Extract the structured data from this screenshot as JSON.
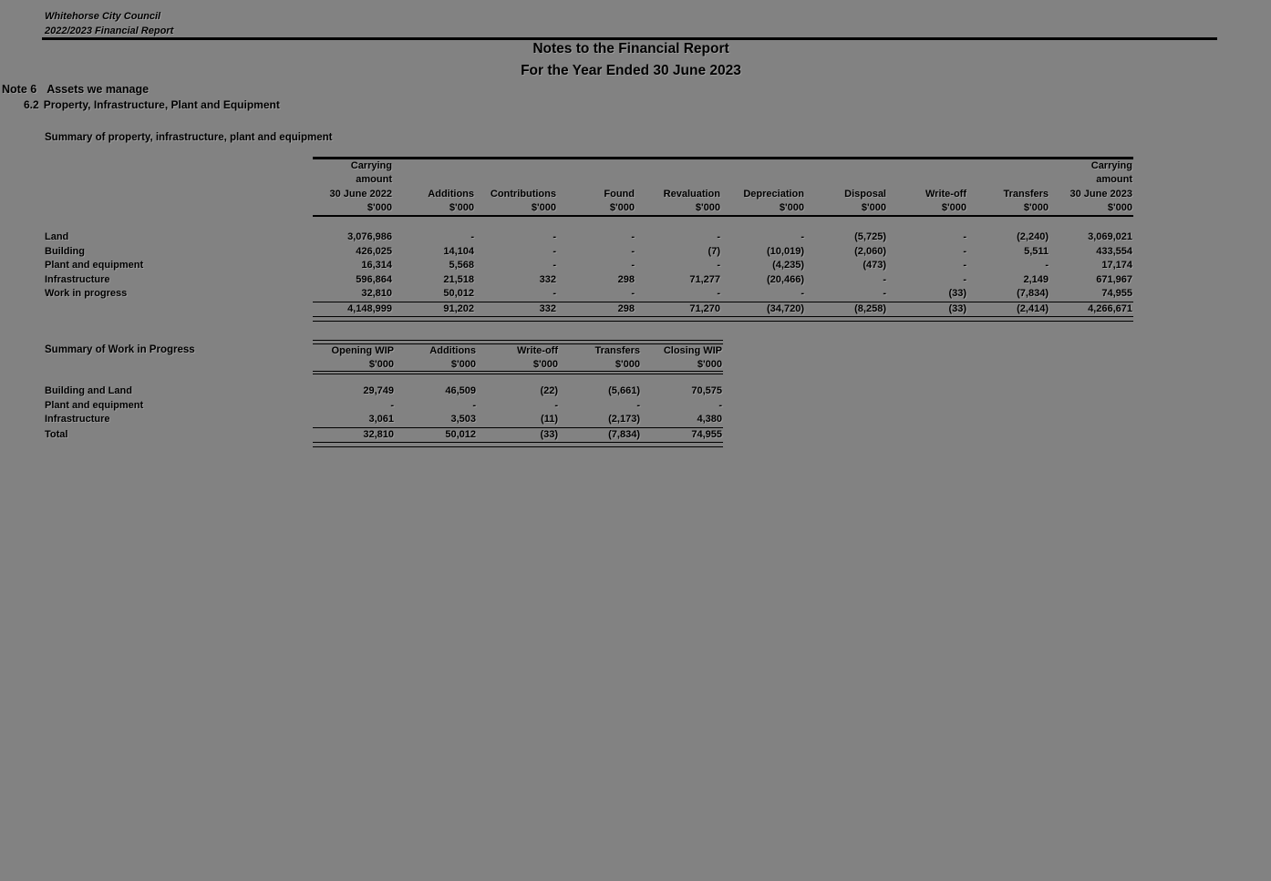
{
  "document": {
    "letterhead": {
      "org": "Whitehorse City Council",
      "report": "2022/2023 Financial Report"
    },
    "title": {
      "line1": "Notes to the Financial Report",
      "line2": "For the Year Ended 30 June 2023"
    },
    "note": {
      "number": "Note 6",
      "title": "Assets we manage",
      "sub_number": "6.2",
      "sub_title": "Property, Infrastructure, Plant and Equipment"
    }
  },
  "ppe_table": {
    "caption": "Summary of property, infrastructure, plant and equipment",
    "unit": "$'000",
    "columns": [
      {
        "lines": [
          "Carrying",
          "amount",
          "30 June 2022"
        ]
      },
      {
        "lines": [
          "Additions"
        ]
      },
      {
        "lines": [
          "Contributions"
        ]
      },
      {
        "lines": [
          "Found"
        ]
      },
      {
        "lines": [
          "Revaluation"
        ]
      },
      {
        "lines": [
          "Depreciation"
        ]
      },
      {
        "lines": [
          "Disposal"
        ]
      },
      {
        "lines": [
          "Write-off"
        ]
      },
      {
        "lines": [
          "Transfers"
        ]
      },
      {
        "lines": [
          "Carrying",
          "amount",
          "30 June 2023"
        ]
      }
    ],
    "rows": [
      {
        "label": "Land",
        "values": [
          "3,076,986",
          "-",
          "-",
          "-",
          "-",
          "-",
          "(5,725)",
          "-",
          "(2,240)",
          "3,069,021"
        ]
      },
      {
        "label": "Building",
        "values": [
          "426,025",
          "14,104",
          "-",
          "-",
          "(7)",
          "(10,019)",
          "(2,060)",
          "-",
          "5,511",
          "433,554"
        ]
      },
      {
        "label": "Plant and equipment",
        "values": [
          "16,314",
          "5,568",
          "-",
          "-",
          "-",
          "(4,235)",
          "(473)",
          "-",
          "-",
          "17,174"
        ]
      },
      {
        "label": "Infrastructure",
        "values": [
          "596,864",
          "21,518",
          "332",
          "298",
          "71,277",
          "(20,466)",
          "-",
          "-",
          "2,149",
          "671,967"
        ]
      },
      {
        "label": "Work in progress",
        "values": [
          "32,810",
          "50,012",
          "-",
          "-",
          "-",
          "-",
          "-",
          "(33)",
          "(7,834)",
          "74,955"
        ]
      }
    ],
    "total_row": {
      "label": "",
      "values": [
        "4,148,999",
        "91,202",
        "332",
        "298",
        "71,270",
        "(34,720)",
        "(8,258)",
        "(33)",
        "(2,414)",
        "4,266,671"
      ]
    }
  },
  "wip_table": {
    "caption": "Summary of Work in Progress",
    "unit": "$'000",
    "columns": [
      {
        "lines": [
          "Opening WIP"
        ]
      },
      {
        "lines": [
          "Additions"
        ]
      },
      {
        "lines": [
          "Write-off"
        ]
      },
      {
        "lines": [
          "Transfers"
        ]
      },
      {
        "lines": [
          "Closing WIP"
        ]
      }
    ],
    "rows": [
      {
        "label": "Building and Land",
        "values": [
          "29,749",
          "46,509",
          "(22)",
          "(5,661)",
          "70,575"
        ]
      },
      {
        "label": "Plant and equipment",
        "values": [
          "-",
          "-",
          "-",
          "-",
          "-"
        ]
      },
      {
        "label": "Infrastructure",
        "values": [
          "3,061",
          "3,503",
          "(11)",
          "(2,173)",
          "4,380"
        ]
      }
    ],
    "total_row": {
      "label": "Total",
      "values": [
        "32,810",
        "50,012",
        "(33)",
        "(7,834)",
        "74,955"
      ]
    }
  },
  "colors": {
    "page_bg": "#828282",
    "ink": "#000000"
  }
}
